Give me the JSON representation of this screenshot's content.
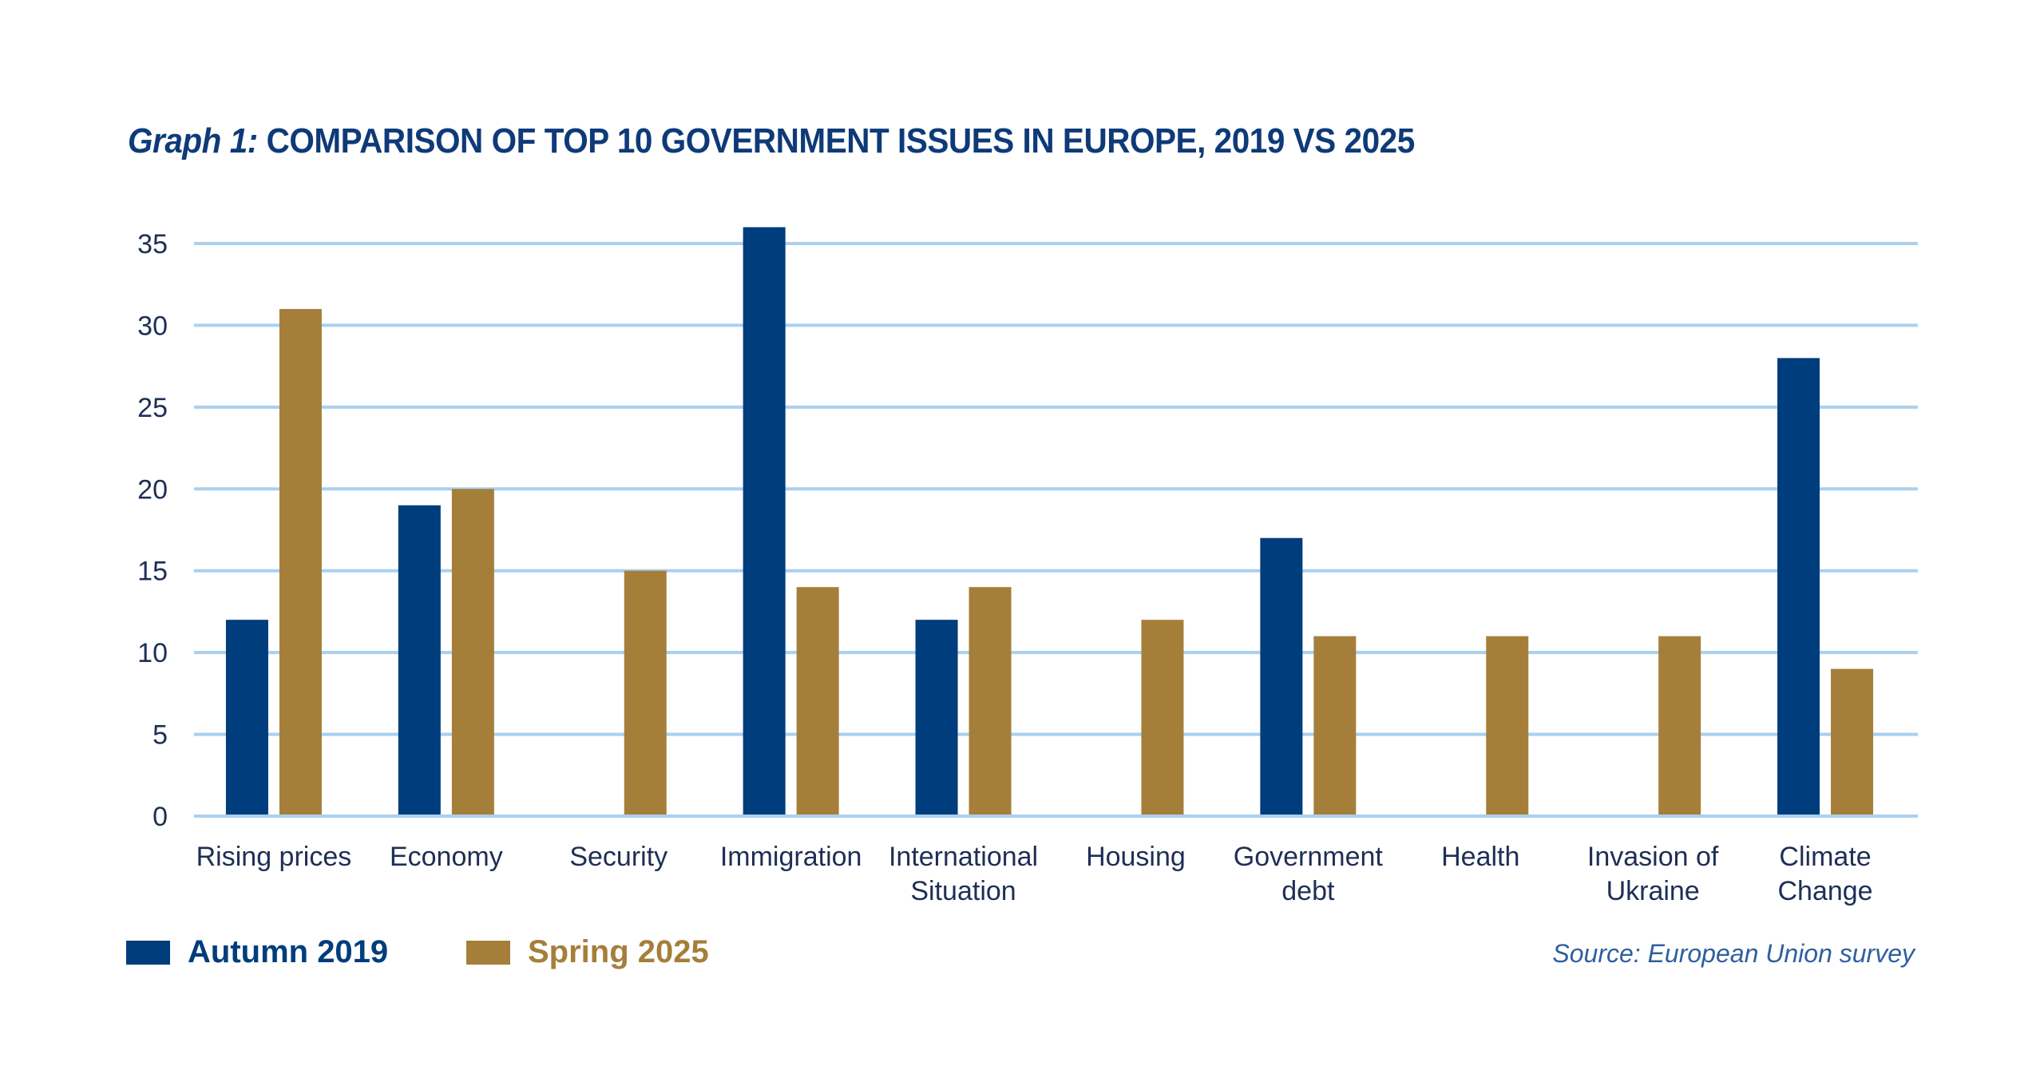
{
  "title": {
    "prefix": "Graph 1:",
    "text": "COMPARISON OF TOP 10 GOVERNMENT ISSUES IN EUROPE, 2019 VS 2025"
  },
  "colors": {
    "series_2019": "#003d7c",
    "series_2025": "#a57f3a",
    "grid": "#a9d0f0",
    "title": "#0e3a78",
    "axis_text": "#1d2f55"
  },
  "legend": {
    "items": [
      {
        "label": "Autumn 2019",
        "color": "#003d7c"
      },
      {
        "label": "Spring 2025",
        "color": "#a57f3a"
      }
    ]
  },
  "source": "Source: European Union survey",
  "chart_data": {
    "type": "bar",
    "title": "Graph 1: COMPARISON OF TOP 10 GOVERNMENT ISSUES IN EUROPE, 2019 VS 2025",
    "xlabel": "",
    "ylabel": "",
    "ylim": [
      0,
      35
    ],
    "yticks": [
      0,
      5,
      10,
      15,
      20,
      25,
      30,
      35
    ],
    "grid": true,
    "legend_position": "bottom-left",
    "categories": [
      [
        "Rising prices"
      ],
      [
        "Economy"
      ],
      [
        "Security"
      ],
      [
        "Immigration"
      ],
      [
        "International",
        "Situation"
      ],
      [
        "Housing"
      ],
      [
        "Government",
        "debt"
      ],
      [
        "Health"
      ],
      [
        "Invasion of",
        "Ukraine"
      ],
      [
        "Climate",
        "Change"
      ]
    ],
    "series": [
      {
        "name": "Autumn 2019",
        "color": "#003d7c",
        "values": [
          12,
          19,
          null,
          36,
          12,
          null,
          17,
          null,
          null,
          28
        ]
      },
      {
        "name": "Spring 2025",
        "color": "#a57f3a",
        "values": [
          31,
          20,
          15,
          14,
          14,
          12,
          11,
          11,
          11,
          9
        ]
      }
    ]
  }
}
